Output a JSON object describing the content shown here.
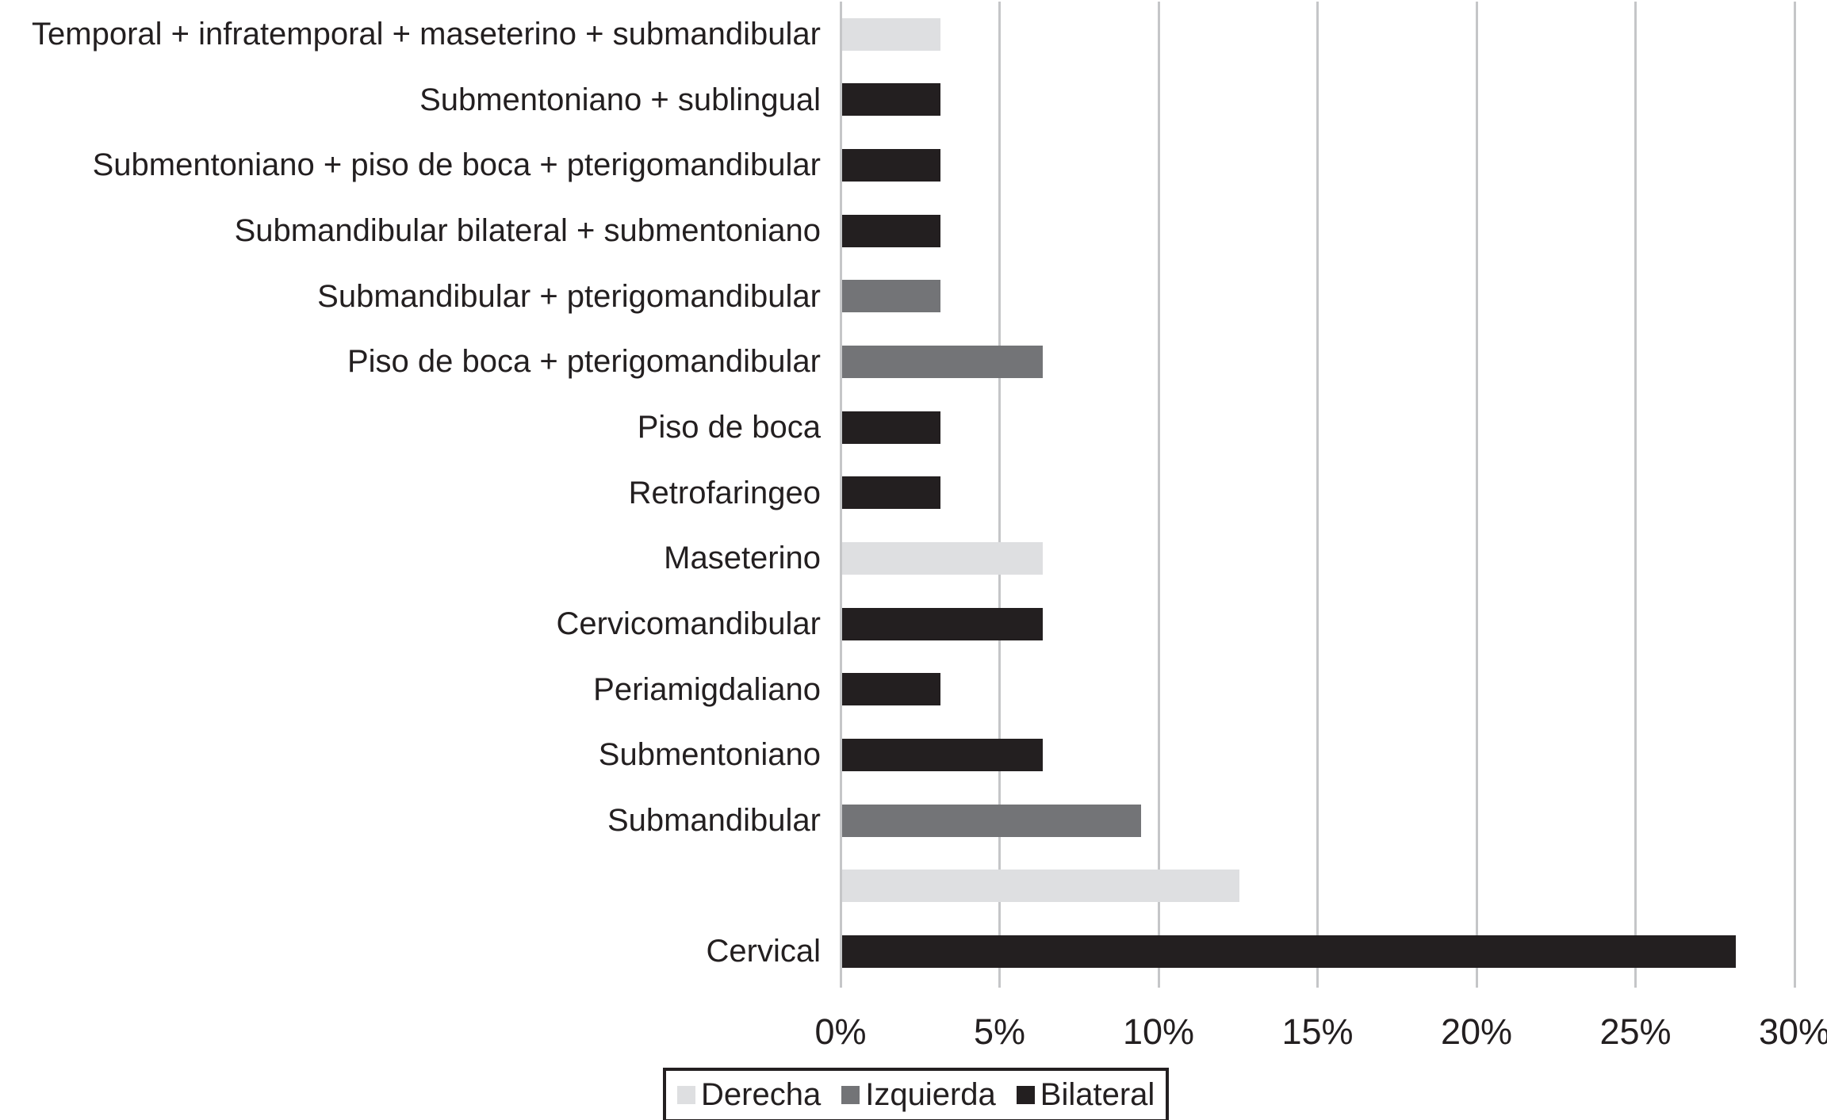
{
  "chart_data": {
    "type": "bar",
    "orientation": "horizontal",
    "title": "",
    "xlabel": "",
    "ylabel": "",
    "xlim": [
      0,
      30
    ],
    "x_ticks": [
      "0%",
      "5%",
      "10%",
      "15%",
      "20%",
      "25%",
      "30%"
    ],
    "x_tick_values": [
      0,
      5,
      10,
      15,
      20,
      25,
      30
    ],
    "grid": true,
    "legend_position": "bottom-left",
    "series": [
      {
        "name": "Derecha",
        "color": "#dedfe1"
      },
      {
        "name": "Izquierda",
        "color": "#737477"
      },
      {
        "name": "Bilateral",
        "color": "#231f20"
      }
    ],
    "rows": [
      {
        "label": "Temporal + infratemporal + maseterino + submandibular",
        "series": "Derecha",
        "value": 3.1
      },
      {
        "label": "Submentoniano + sublingual",
        "series": "Bilateral",
        "value": 3.1
      },
      {
        "label": "Submentoniano + piso de boca + pterigomandibular",
        "series": "Bilateral",
        "value": 3.1
      },
      {
        "label": "Submandibular bilateral + submentoniano",
        "series": "Bilateral",
        "value": 3.1
      },
      {
        "label": "Submandibular + pterigomandibular",
        "series": "Izquierda",
        "value": 3.1
      },
      {
        "label": "Piso de boca + pterigomandibular",
        "series": "Izquierda",
        "value": 6.3
      },
      {
        "label": "Piso de boca",
        "series": "Bilateral",
        "value": 3.1
      },
      {
        "label": "Retrofaringeo",
        "series": "Bilateral",
        "value": 3.1
      },
      {
        "label": "Maseterino",
        "series": "Derecha",
        "value": 6.3
      },
      {
        "label": "Cervicomandibular",
        "series": "Bilateral",
        "value": 6.3
      },
      {
        "label": "Periamigdaliano",
        "series": "Bilateral",
        "value": 3.1
      },
      {
        "label": "Submentoniano",
        "series": "Bilateral",
        "value": 6.3
      },
      {
        "label": "Submandibular",
        "series": "Izquierda",
        "value": 9.4
      },
      {
        "label": "",
        "series": "Derecha",
        "value": 12.5
      },
      {
        "label": "Cervical",
        "series": "Bilateral",
        "value": 28.1
      }
    ],
    "legend": [
      "Derecha",
      "Izquierda",
      "Bilateral"
    ]
  },
  "colors": {
    "background": "#ffffff",
    "gridline": "#c5c6c8",
    "text": "#231f20"
  }
}
